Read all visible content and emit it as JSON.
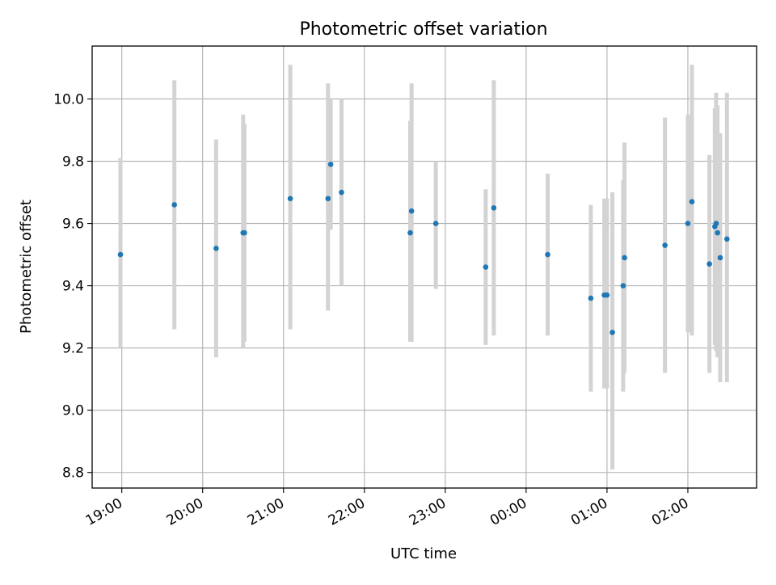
{
  "chart_data": {
    "type": "scatter",
    "title": "Photometric offset variation",
    "xlabel": "UTC time",
    "ylabel": "Photometric offset",
    "x_axis": {
      "type": "time",
      "range": [
        "18:38",
        "02:51"
      ],
      "ticks": [
        {
          "t": "19:00",
          "label": "19:00"
        },
        {
          "t": "20:00",
          "label": "20:00"
        },
        {
          "t": "21:00",
          "label": "21:00"
        },
        {
          "t": "22:00",
          "label": "22:00"
        },
        {
          "t": "23:00",
          "label": "23:00"
        },
        {
          "t": "00:00",
          "label": "00:00"
        },
        {
          "t": "01:00",
          "label": "01:00"
        },
        {
          "t": "02:00",
          "label": "02:00"
        }
      ]
    },
    "y_axis": {
      "range": [
        8.75,
        10.17
      ],
      "ticks": [
        "8.8",
        "9.0",
        "9.2",
        "9.4",
        "9.6",
        "9.8",
        "10.0"
      ]
    },
    "grid": true,
    "colors": {
      "point": "#1f77b4",
      "errorbar": "#d3d3d3",
      "grid": "#b0b0b0"
    },
    "points": [
      {
        "t": "18:59",
        "y": 9.5,
        "lo": 9.2,
        "hi": 9.81
      },
      {
        "t": "19:39",
        "y": 9.66,
        "lo": 9.26,
        "hi": 10.06
      },
      {
        "t": "20:10",
        "y": 9.52,
        "lo": 9.17,
        "hi": 9.87
      },
      {
        "t": "20:30",
        "y": 9.57,
        "lo": 9.2,
        "hi": 9.95
      },
      {
        "t": "20:31",
        "y": 9.57,
        "lo": 9.22,
        "hi": 9.92
      },
      {
        "t": "21:05",
        "y": 9.68,
        "lo": 9.26,
        "hi": 10.11
      },
      {
        "t": "21:33",
        "y": 9.68,
        "lo": 9.32,
        "hi": 10.05
      },
      {
        "t": "21:35",
        "y": 9.79,
        "lo": 9.58,
        "hi": 10.0
      },
      {
        "t": "21:43",
        "y": 9.7,
        "lo": 9.4,
        "hi": 10.0
      },
      {
        "t": "22:34",
        "y": 9.57,
        "lo": 9.22,
        "hi": 9.93
      },
      {
        "t": "22:35",
        "y": 9.64,
        "lo": 9.22,
        "hi": 10.05
      },
      {
        "t": "22:53",
        "y": 9.6,
        "lo": 9.39,
        "hi": 9.8
      },
      {
        "t": "23:30",
        "y": 9.46,
        "lo": 9.21,
        "hi": 9.71
      },
      {
        "t": "23:36",
        "y": 9.65,
        "lo": 9.24,
        "hi": 10.06
      },
      {
        "t": "00:16",
        "y": 9.5,
        "lo": 9.24,
        "hi": 9.76
      },
      {
        "t": "00:48",
        "y": 9.36,
        "lo": 9.06,
        "hi": 9.66
      },
      {
        "t": "00:58",
        "y": 9.37,
        "lo": 9.07,
        "hi": 9.68
      },
      {
        "t": "01:00",
        "y": 9.37,
        "lo": 9.07,
        "hi": 9.68
      },
      {
        "t": "01:04",
        "y": 9.25,
        "lo": 8.81,
        "hi": 9.7
      },
      {
        "t": "01:12",
        "y": 9.4,
        "lo": 9.06,
        "hi": 9.74
      },
      {
        "t": "01:13",
        "y": 9.49,
        "lo": 9.12,
        "hi": 9.86
      },
      {
        "t": "01:43",
        "y": 9.53,
        "lo": 9.12,
        "hi": 9.94
      },
      {
        "t": "02:00",
        "y": 9.6,
        "lo": 9.25,
        "hi": 9.95
      },
      {
        "t": "02:03",
        "y": 9.67,
        "lo": 9.24,
        "hi": 10.11
      },
      {
        "t": "02:16",
        "y": 9.47,
        "lo": 9.12,
        "hi": 9.82
      },
      {
        "t": "02:20",
        "y": 9.59,
        "lo": 9.21,
        "hi": 9.97
      },
      {
        "t": "02:21",
        "y": 9.6,
        "lo": 9.19,
        "hi": 10.02
      },
      {
        "t": "02:22",
        "y": 9.57,
        "lo": 9.17,
        "hi": 9.98
      },
      {
        "t": "02:24",
        "y": 9.49,
        "lo": 9.09,
        "hi": 9.89
      },
      {
        "t": "02:29",
        "y": 9.55,
        "lo": 9.09,
        "hi": 10.02
      }
    ]
  }
}
